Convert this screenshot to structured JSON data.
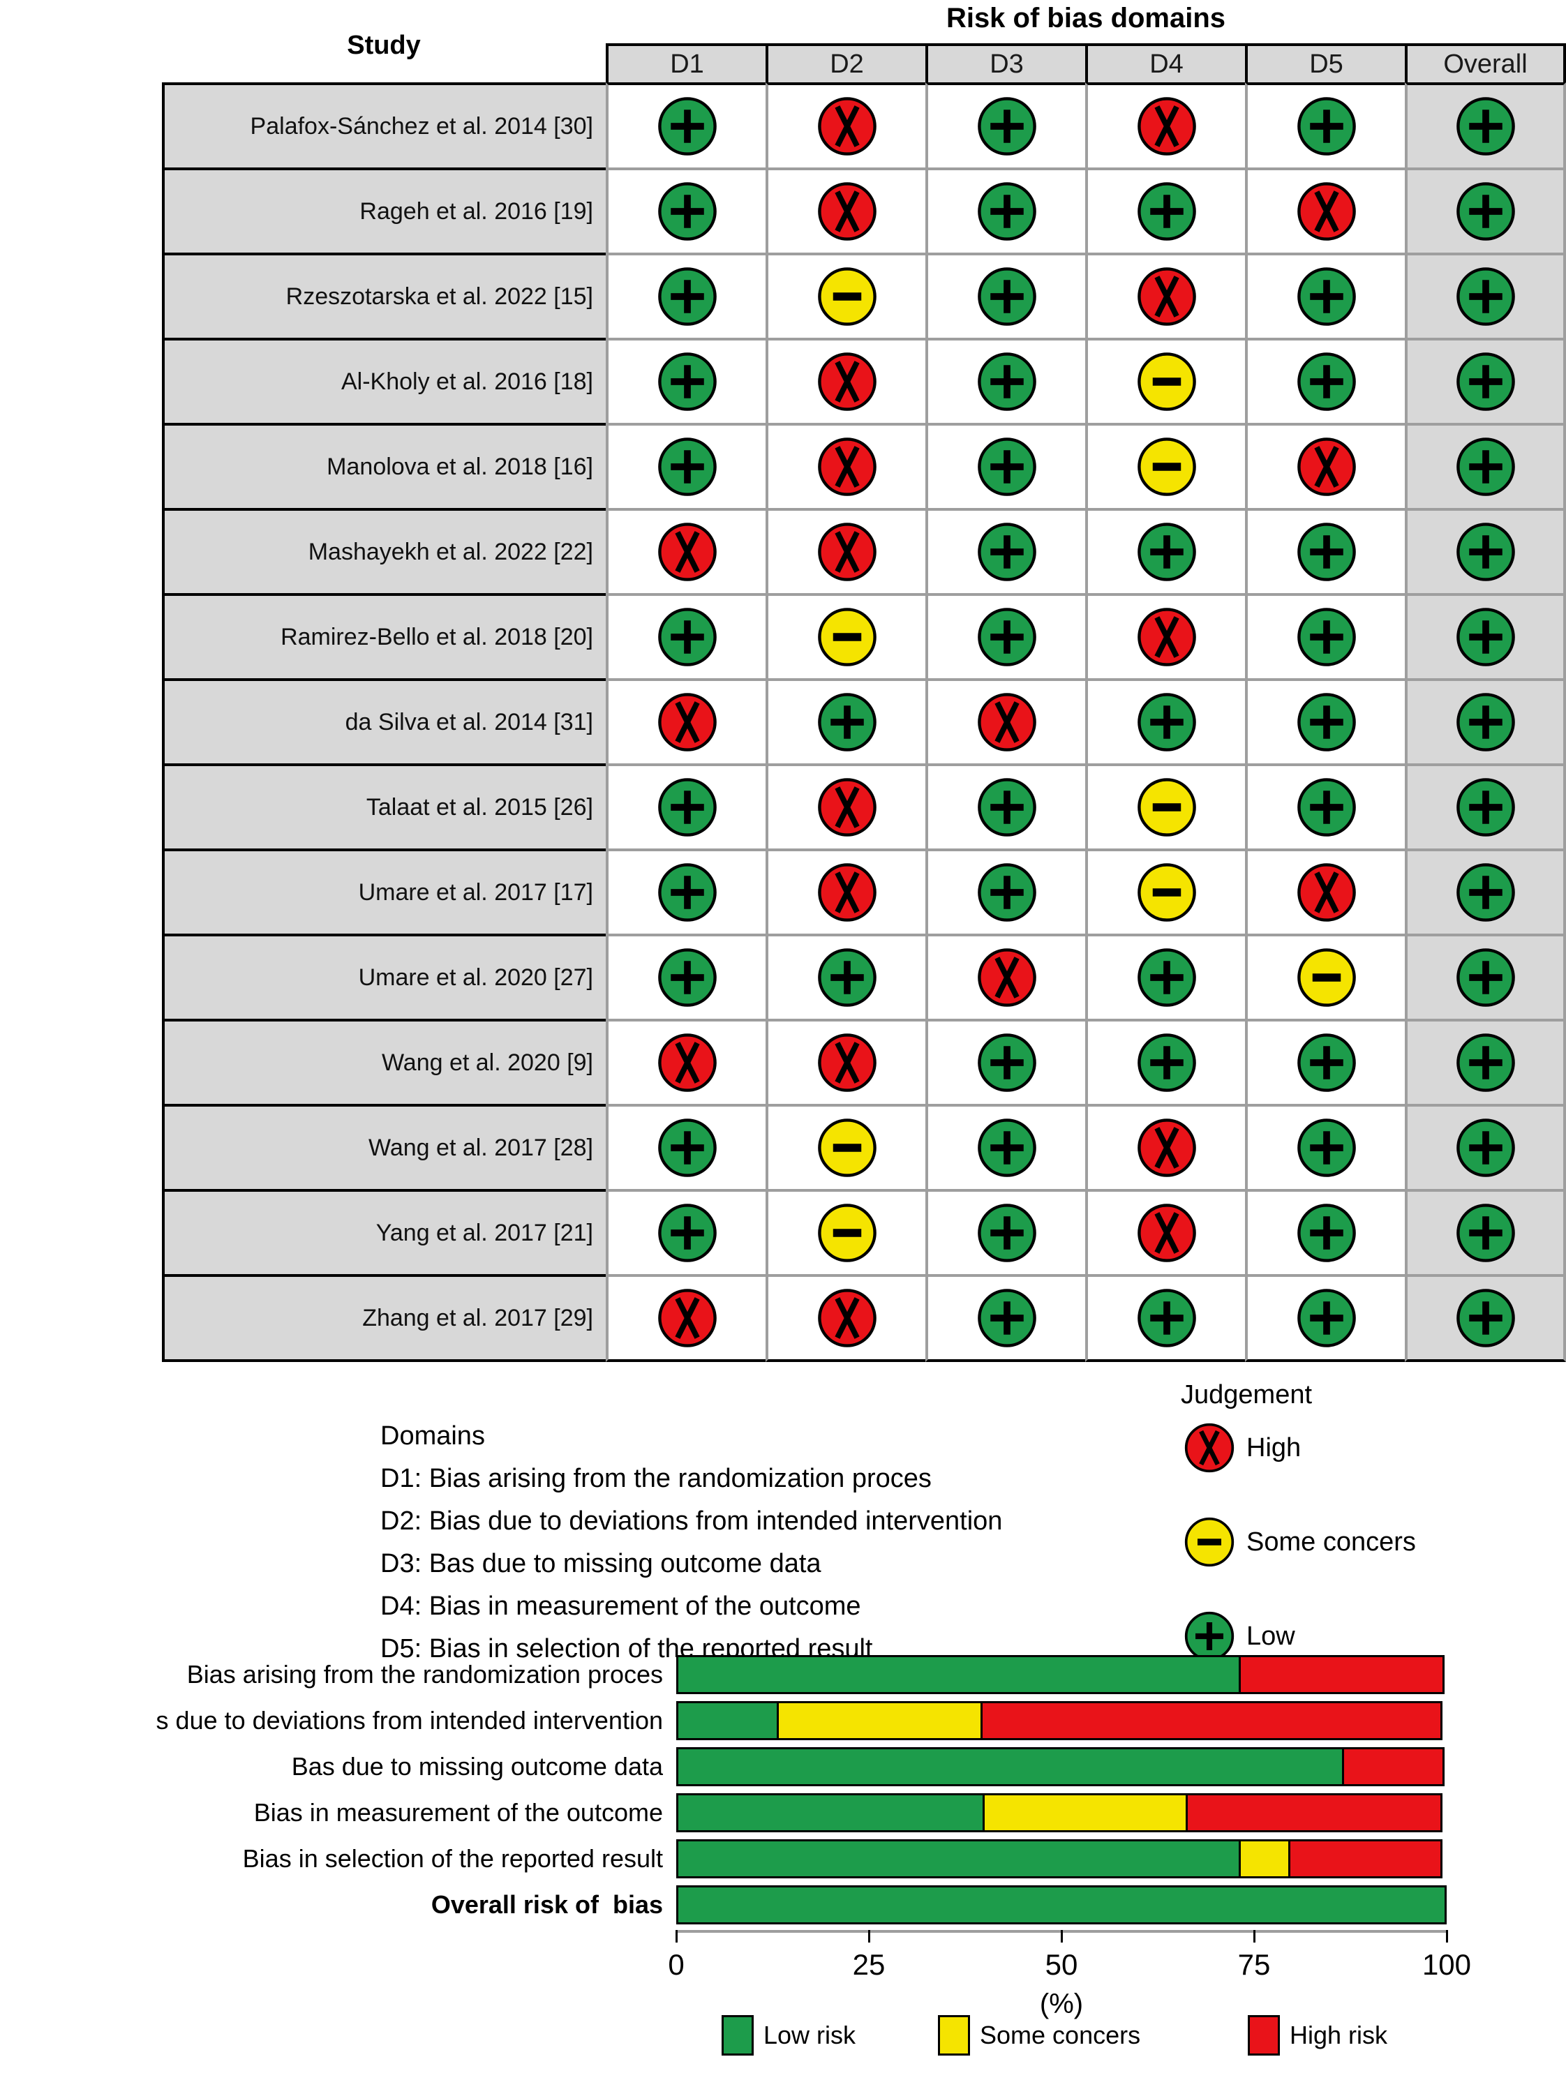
{
  "table": {
    "title": "Risk of bias domains",
    "study_header": "Study",
    "columns": [
      "D1",
      "D2",
      "D3",
      "D4",
      "D5",
      "Overall"
    ],
    "studies": [
      {
        "label": "Palafox-Sánchez et al. 2014 [30]",
        "judgements": [
          "low",
          "high",
          "low",
          "high",
          "low",
          "low"
        ]
      },
      {
        "label": "Rageh et al. 2016 [19]",
        "judgements": [
          "low",
          "high",
          "low",
          "low",
          "high",
          "low"
        ]
      },
      {
        "label": "Rzeszotarska et al. 2022 [15]",
        "judgements": [
          "low",
          "some",
          "low",
          "high",
          "low",
          "low"
        ]
      },
      {
        "label": "Al-Kholy et al. 2016 [18]",
        "judgements": [
          "low",
          "high",
          "low",
          "some",
          "low",
          "low"
        ]
      },
      {
        "label": "Manolova et al. 2018 [16]",
        "judgements": [
          "low",
          "high",
          "low",
          "some",
          "high",
          "low"
        ]
      },
      {
        "label": "Mashayekh et al. 2022 [22]",
        "judgements": [
          "high",
          "high",
          "low",
          "low",
          "low",
          "low"
        ]
      },
      {
        "label": "Ramirez-Bello et al. 2018 [20]",
        "judgements": [
          "low",
          "some",
          "low",
          "high",
          "low",
          "low"
        ]
      },
      {
        "label": "da Silva et al. 2014 [31]",
        "judgements": [
          "high",
          "low",
          "high",
          "low",
          "low",
          "low"
        ]
      },
      {
        "label": "Talaat et al. 2015 [26]",
        "judgements": [
          "low",
          "high",
          "low",
          "some",
          "low",
          "low"
        ]
      },
      {
        "label": "Umare et al. 2017 [17]",
        "judgements": [
          "low",
          "high",
          "low",
          "some",
          "high",
          "low"
        ]
      },
      {
        "label": "Umare et al. 2020 [27]",
        "judgements": [
          "low",
          "low",
          "high",
          "low",
          "some",
          "low"
        ]
      },
      {
        "label": "Wang et al. 2020 [9]",
        "judgements": [
          "high",
          "high",
          "low",
          "low",
          "low",
          "low"
        ]
      },
      {
        "label": "Wang et al. 2017 [28]",
        "judgements": [
          "low",
          "some",
          "low",
          "high",
          "low",
          "low"
        ]
      },
      {
        "label": "Yang et al. 2017 [21]",
        "judgements": [
          "low",
          "some",
          "low",
          "high",
          "low",
          "low"
        ]
      },
      {
        "label": "Zhang et al. 2017 [29]",
        "judgements": [
          "high",
          "high",
          "low",
          "low",
          "low",
          "low"
        ]
      }
    ]
  },
  "judgement_styles": {
    "low": {
      "color": "#1d9c4b",
      "symbol": "plus"
    },
    "some": {
      "color": "#f5e400",
      "symbol": "minus"
    },
    "high": {
      "color": "#e91319",
      "symbol": "x"
    }
  },
  "domains_legend": {
    "heading": "Domains",
    "items": [
      "D1: Bias arising from the randomization proces",
      "D2: Bias due to deviations from intended intervention",
      "D3: Bas due to missing outcome data",
      "D4: Bias in measurement of the outcome",
      "D5: Bias in selection of the reported result"
    ]
  },
  "judgement_legend": {
    "heading": "Judgement",
    "items": [
      {
        "key": "high",
        "label": "High"
      },
      {
        "key": "some",
        "label": "Some concers"
      },
      {
        "key": "low",
        "label": "Low"
      }
    ]
  },
  "chart_data": {
    "type": "bar",
    "orientation": "horizontal-stacked",
    "categories": [
      "Bias arising from the randomization proces",
      "s due to deviations from intended intervention",
      "Bas due to missing outcome data",
      "Bias in measurement of the outcome",
      "Bias in selection of the reported result",
      "Overall risk of  bias"
    ],
    "series": [
      {
        "name": "Low risk",
        "color": "#1d9c4b",
        "values": [
          73.3,
          13.3,
          86.7,
          40.0,
          73.3,
          100.0
        ]
      },
      {
        "name": "Some concers",
        "color": "#f5e400",
        "values": [
          0.0,
          26.7,
          0.0,
          26.7,
          6.7,
          0.0
        ]
      },
      {
        "name": "High risk",
        "color": "#e91319",
        "values": [
          26.7,
          60.0,
          13.3,
          33.3,
          20.0,
          0.0
        ]
      }
    ],
    "xlabel": "(%)",
    "xticks": [
      0,
      25,
      50,
      75,
      100
    ],
    "xlim": [
      0,
      100
    ],
    "legend": [
      {
        "label": "Low risk",
        "color": "#1d9c4b"
      },
      {
        "label": "Some concers",
        "color": "#f5e400"
      },
      {
        "label": "High risk",
        "color": "#e91319"
      }
    ]
  }
}
